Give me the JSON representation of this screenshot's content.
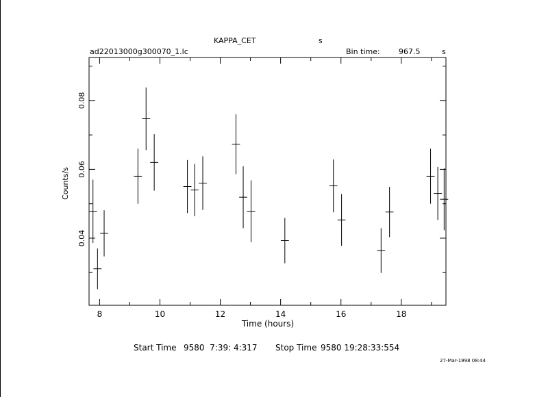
{
  "header": {
    "object_name": "KAPPA_CET",
    "object_unit": "s",
    "filename": "ad22013000g300070_1.lc",
    "bin_time_label": "Bin time:",
    "bin_time_value": "967.5",
    "bin_time_unit": "s"
  },
  "footer": {
    "start_label": "Start Time",
    "start_value": "9580  7:39: 4:317",
    "stop_label": "Stop Time",
    "stop_value": "9580 19:28:33:554",
    "timestamp": "27-Mar-1998 08:44"
  },
  "chart_data": {
    "type": "scatter",
    "title": "",
    "xlabel": "Time (hours)",
    "ylabel": "Counts/s",
    "xlim": [
      7.65,
      19.48
    ],
    "ylim": [
      0.0205,
      0.0925
    ],
    "xticks": [
      8,
      10,
      12,
      14,
      16,
      18
    ],
    "yticks": [
      0.04,
      0.06,
      0.08
    ],
    "xtick_labels": [
      "8",
      "10",
      "12",
      "14",
      "16",
      "18"
    ],
    "ytick_labels": [
      "0.04",
      "0.06",
      "0.08"
    ],
    "grid": false,
    "series": [
      {
        "x": [
          7.78,
          7.93,
          8.15,
          9.27,
          9.54,
          9.81,
          10.91,
          11.15,
          11.42,
          12.52,
          12.76,
          13.02,
          14.14,
          15.75,
          16.02,
          17.33,
          17.61,
          18.97,
          19.21,
          19.42
        ],
        "y": [
          0.0478,
          0.0311,
          0.0414,
          0.058,
          0.0747,
          0.062,
          0.055,
          0.054,
          0.056,
          0.0673,
          0.0519,
          0.0478,
          0.0393,
          0.0552,
          0.0453,
          0.0364,
          0.0476,
          0.058,
          0.053,
          0.0513
        ],
        "yerr": [
          0.0092,
          0.0059,
          0.0067,
          0.008,
          0.0091,
          0.0082,
          0.0077,
          0.0076,
          0.0078,
          0.0087,
          0.009,
          0.009,
          0.0066,
          0.0077,
          0.0075,
          0.0065,
          0.0073,
          0.008,
          0.0077,
          0.009
        ],
        "xerr": [
          0.134,
          0.134,
          0.134,
          0.134,
          0.134,
          0.134,
          0.134,
          0.134,
          0.134,
          0.134,
          0.134,
          0.134,
          0.134,
          0.134,
          0.134,
          0.134,
          0.134,
          0.134,
          0.134,
          0.134
        ]
      }
    ]
  }
}
